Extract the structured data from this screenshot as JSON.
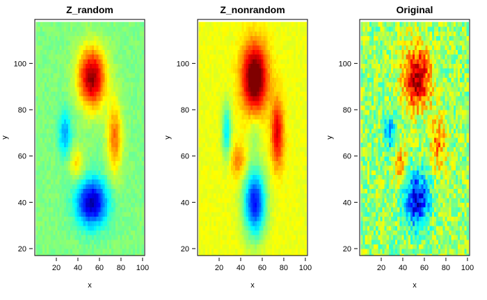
{
  "chart_data": [
    {
      "type": "heatmap",
      "title": "Z_random",
      "xlabel": "x",
      "ylabel": "y",
      "xlim": [
        0,
        102
      ],
      "ylim": [
        119,
        17
      ],
      "xticks": [
        20,
        40,
        60,
        80,
        100
      ],
      "yticks": [
        20,
        40,
        60,
        80,
        100
      ],
      "colormap": "jet",
      "value_range": [
        -1,
        1
      ],
      "background": 0,
      "blobs": [
        {
          "cx": 52,
          "cy": 41,
          "sx": 10,
          "sy": 7,
          "value": -0.92
        },
        {
          "cx": 27,
          "cy": 71,
          "sx": 4,
          "sy": 7,
          "value": -0.42
        },
        {
          "cx": 38,
          "cy": 58,
          "sx": 5,
          "sy": 5,
          "value": 0.32
        },
        {
          "cx": 73,
          "cy": 69,
          "sx": 5,
          "sy": 11,
          "value": 0.52
        },
        {
          "cx": 52,
          "cy": 95,
          "sx": 9,
          "sy": 9,
          "value": 0.97
        }
      ],
      "noise": 0.05
    },
    {
      "type": "heatmap",
      "title": "Z_nonrandom",
      "xlabel": "x",
      "ylabel": "y",
      "xlim": [
        0,
        102
      ],
      "ylim": [
        119,
        17
      ],
      "xticks": [
        20,
        40,
        60,
        80,
        100
      ],
      "yticks": [
        20,
        40,
        60,
        80,
        100
      ],
      "colormap": "jet",
      "value_range": [
        -1,
        1
      ],
      "background": 0.22,
      "blobs": [
        {
          "cx": 52,
          "cy": 41,
          "sx": 7,
          "sy": 10,
          "value": -0.95
        },
        {
          "cx": 26,
          "cy": 72,
          "sx": 3,
          "sy": 8,
          "value": -0.5
        },
        {
          "cx": 52,
          "cy": 71,
          "sx": 4,
          "sy": 7,
          "value": -0.18
        },
        {
          "cx": 37,
          "cy": 59,
          "sx": 5,
          "sy": 5,
          "value": 0.28
        },
        {
          "cx": 73,
          "cy": 71,
          "sx": 4,
          "sy": 10,
          "value": 0.6
        },
        {
          "cx": 52,
          "cy": 95,
          "sx": 8,
          "sy": 10,
          "value": 0.98
        }
      ],
      "noise": 0.04
    },
    {
      "type": "heatmap",
      "title": "Original",
      "xlabel": "x",
      "ylabel": "y",
      "xlim": [
        0,
        102
      ],
      "ylim": [
        119,
        17
      ],
      "xticks": [
        20,
        40,
        60,
        80,
        100
      ],
      "yticks": [
        20,
        40,
        60,
        80,
        100
      ],
      "colormap": "jet",
      "value_range": [
        -1,
        1
      ],
      "background": 0.05,
      "blobs": [
        {
          "cx": 52,
          "cy": 42,
          "sx": 8,
          "sy": 8,
          "value": -0.9
        },
        {
          "cx": 27,
          "cy": 72,
          "sx": 4,
          "sy": 6,
          "value": -0.45
        },
        {
          "cx": 37,
          "cy": 57,
          "sx": 4,
          "sy": 5,
          "value": 0.45
        },
        {
          "cx": 72,
          "cy": 67,
          "sx": 5,
          "sy": 8,
          "value": 0.45
        },
        {
          "cx": 52,
          "cy": 95,
          "sx": 9,
          "sy": 9,
          "value": 0.9
        }
      ],
      "noise": 0.22
    }
  ]
}
